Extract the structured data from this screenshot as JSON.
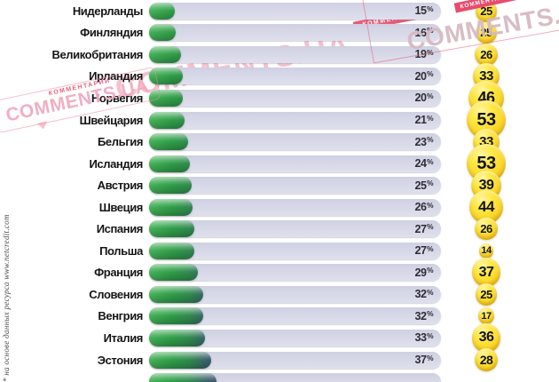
{
  "chart_data": {
    "type": "bar",
    "title": "",
    "orientation": "horizontal",
    "value_unit": "%",
    "percent_sign": "%",
    "legend": "none",
    "grid": false,
    "categories": [
      "Нидерланды",
      "Финляндия",
      "Великобритания",
      "Ирландия",
      "Норвегия",
      "Швейцария",
      "Бельгия",
      "Исландия",
      "Австрия",
      "Швеция",
      "Испания",
      "Польша",
      "Франция",
      "Словения",
      "Венгрия",
      "Италия",
      "Эстония"
    ],
    "series": [
      {
        "name": "percent",
        "values": [
          15,
          16,
          19,
          20,
          20,
          21,
          23,
          24,
          25,
          26,
          27,
          27,
          29,
          32,
          32,
          33,
          37
        ]
      },
      {
        "name": "score-bubble",
        "values": [
          25,
          25,
          26,
          33,
          46,
          53,
          33,
          53,
          39,
          44,
          26,
          14,
          37,
          25,
          17,
          36,
          28
        ]
      }
    ],
    "rows": [
      {
        "country": "Нидерланды",
        "pct": 15,
        "score": 25
      },
      {
        "country": "Финляндия",
        "pct": 16,
        "score": 25
      },
      {
        "country": "Великобритания",
        "pct": 19,
        "score": 26
      },
      {
        "country": "Ирландия",
        "pct": 20,
        "score": 33
      },
      {
        "country": "Норвегия",
        "pct": 20,
        "score": 46
      },
      {
        "country": "Швейцария",
        "pct": 21,
        "score": 53
      },
      {
        "country": "Бельгия",
        "pct": 23,
        "score": 33
      },
      {
        "country": "Исландия",
        "pct": 24,
        "score": 53
      },
      {
        "country": "Австрия",
        "pct": 25,
        "score": 39
      },
      {
        "country": "Швеция",
        "pct": 26,
        "score": 44
      },
      {
        "country": "Испания",
        "pct": 27,
        "score": 26
      },
      {
        "country": "Польша",
        "pct": 27,
        "score": 14
      },
      {
        "country": "Франция",
        "pct": 29,
        "score": 37
      },
      {
        "country": "Словения",
        "pct": 32,
        "score": 25
      },
      {
        "country": "Венгрия",
        "pct": 32,
        "score": 17
      },
      {
        "country": "Италия",
        "pct": 33,
        "score": 36
      },
      {
        "country": "Эстония",
        "pct": 37,
        "score": 28
      }
    ],
    "partial_bottom_row_pct_estimate": 40,
    "footnote": "* на основе данных ресурса www.netcredit.com",
    "colors": {
      "bar_fill_green": "#2f9e48",
      "bar_fill_dark_end": "#394672",
      "track": "#d8d9e8",
      "bubble_yellow": "#ffe843",
      "text": "#151515"
    }
  },
  "watermarks": {
    "brand": "COMMENTS.UA",
    "brand_small": "КОММЕНТАРИИ",
    "ribbon_text": "КОММЕНТАРИИ"
  }
}
